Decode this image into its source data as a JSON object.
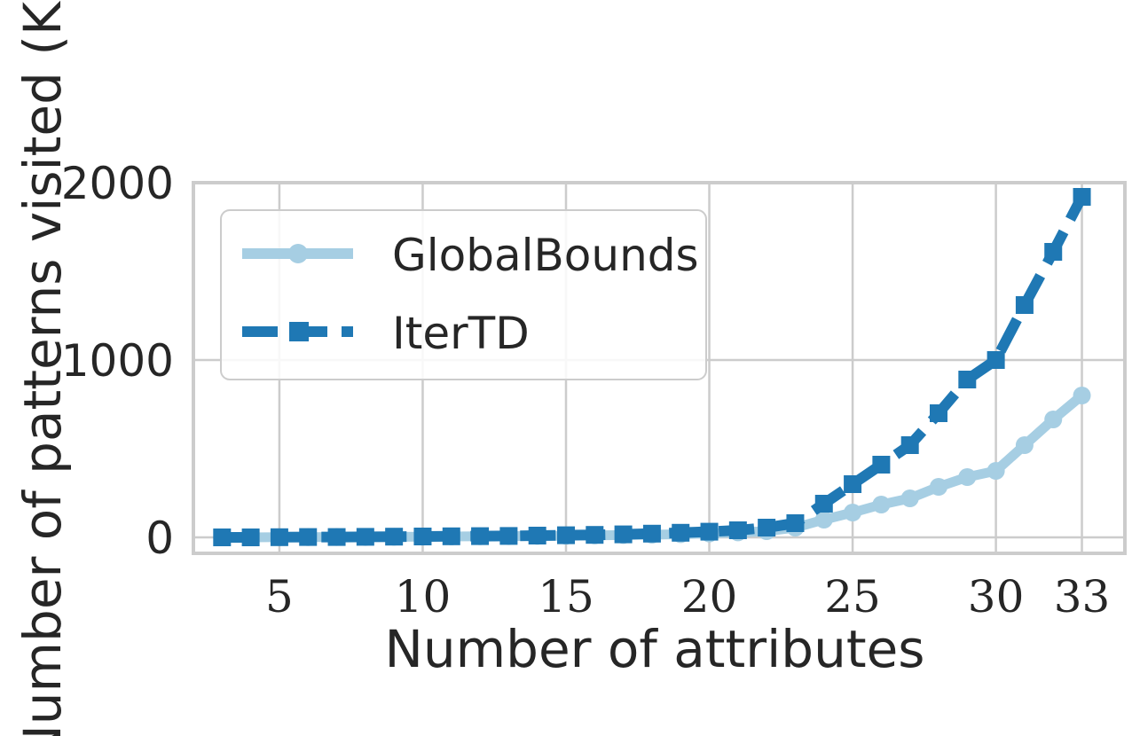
{
  "chart_data": {
    "type": "line",
    "xlabel": "Number of attributes",
    "ylabel": "Number of patterns visited (K)",
    "xlim": [
      2.0,
      34.5
    ],
    "ylim": [
      -90,
      2000
    ],
    "xticks": [
      5,
      10,
      15,
      20,
      25,
      30,
      33
    ],
    "yticks": [
      0,
      1000,
      2000
    ],
    "grid": true,
    "legend_position": "upper-left",
    "series": [
      {
        "name": "GlobalBounds",
        "color": "#a6cee3",
        "marker": "circle",
        "linestyle": "solid",
        "x": [
          3,
          4,
          5,
          6,
          7,
          8,
          9,
          10,
          11,
          12,
          13,
          14,
          15,
          16,
          17,
          18,
          19,
          20,
          21,
          22,
          23,
          24,
          25,
          26,
          27,
          28,
          29,
          30,
          31,
          32,
          33
        ],
        "y": [
          0,
          0,
          1,
          1,
          2,
          2,
          3,
          4,
          5,
          6,
          7,
          8,
          9,
          11,
          13,
          15,
          18,
          22,
          28,
          35,
          55,
          100,
          140,
          185,
          220,
          285,
          340,
          375,
          520,
          665,
          800
        ]
      },
      {
        "name": "IterTD",
        "color": "#1f78b4",
        "marker": "square",
        "linestyle": "dashed",
        "x": [
          3,
          4,
          5,
          6,
          7,
          8,
          9,
          10,
          11,
          12,
          13,
          14,
          15,
          16,
          17,
          18,
          19,
          20,
          21,
          22,
          23,
          24,
          25,
          26,
          27,
          28,
          29,
          30,
          31,
          32,
          33
        ],
        "y": [
          0,
          0,
          1,
          2,
          2,
          3,
          4,
          5,
          6,
          7,
          8,
          10,
          12,
          14,
          17,
          21,
          26,
          32,
          40,
          55,
          80,
          190,
          300,
          410,
          520,
          700,
          890,
          1000,
          1310,
          1610,
          1920
        ]
      }
    ]
  }
}
